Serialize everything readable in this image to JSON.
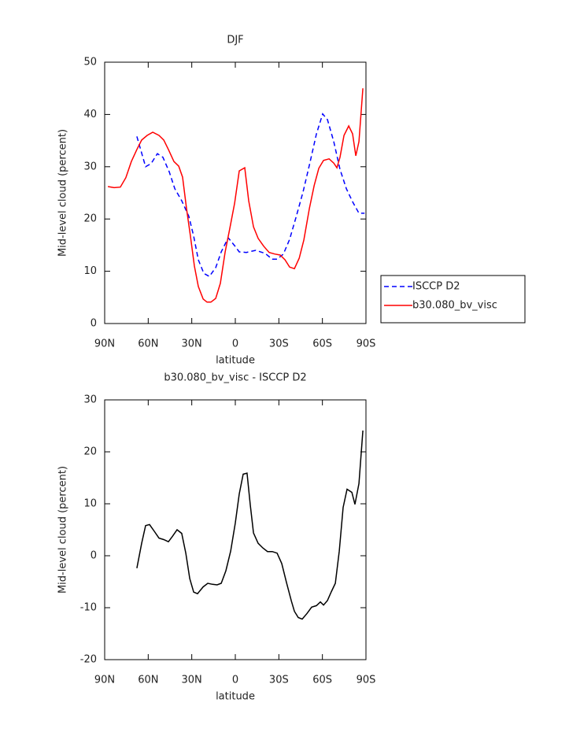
{
  "chart_data": [
    {
      "type": "line",
      "title": "DJF",
      "xlabel": "latitude",
      "ylabel": "Mid-level cloud (percent)",
      "xlim": [
        90,
        -90
      ],
      "xticks": [
        {
          "value": 90,
          "label": "90N"
        },
        {
          "value": 60,
          "label": "60N"
        },
        {
          "value": 30,
          "label": "30N"
        },
        0,
        {
          "value": -30,
          "label": "30S"
        },
        {
          "value": -60,
          "label": "60S"
        },
        {
          "value": -90,
          "label": "90S"
        }
      ],
      "ylim": [
        0,
        50
      ],
      "yticks": [
        0,
        10,
        20,
        30,
        40,
        50
      ],
      "legend": "right",
      "series": [
        {
          "name": "ISCCP D2",
          "color": "#0000ff",
          "linestyle": "dashed",
          "x": [
            67.8,
            61.8,
            58,
            53.7,
            49.9,
            45.5,
            41.7,
            36.9,
            32,
            28.7,
            25.5,
            21.7,
            17.9,
            13.5,
            9.7,
            4.9,
            0.5,
            -2.7,
            -7.6,
            -14.1,
            -20.6,
            -25.5,
            -28.8,
            -33.1,
            -37.4,
            -41.8,
            -46.7,
            -51,
            -55.9,
            -60.2,
            -63.5,
            -67.8,
            -72.1,
            -76.5,
            -80.8,
            -85.2,
            -89
          ],
          "values": [
            35.8,
            30,
            30.6,
            32.5,
            31.8,
            29,
            25.8,
            23.5,
            20.5,
            16.7,
            12.2,
            9.6,
            9.0,
            10.7,
            13.7,
            16.4,
            14.9,
            13.7,
            13.6,
            14,
            13.4,
            12.3,
            12.3,
            13.3,
            16.1,
            20.3,
            25.2,
            30.3,
            36.3,
            40.1,
            39,
            34.8,
            29.5,
            25.8,
            23.3,
            21.1,
            21.1
          ]
        },
        {
          "name": "b30.080_bv_visc",
          "color": "#ff0000",
          "linestyle": "solid",
          "x": [
            87.8,
            83.5,
            79.2,
            75.4,
            71.6,
            67.8,
            64.5,
            60.7,
            56.9,
            52.6,
            49.3,
            46.1,
            42.3,
            39,
            36.3,
            33.6,
            30.9,
            28.2,
            25.5,
            22.2,
            19.5,
            16.8,
            13.5,
            10.3,
            7,
            3.8,
            0.5,
            -2.7,
            -6.5,
            -9.2,
            -12.5,
            -15.7,
            -19.5,
            -23.3,
            -27.1,
            -30.9,
            -34.2,
            -37.4,
            -40.7,
            -44,
            -47.2,
            -51,
            -54.3,
            -57.5,
            -60.8,
            -64.6,
            -67.8,
            -70,
            -72.1,
            -74.9,
            -78.1,
            -80.8,
            -83,
            -85.2,
            -87.9
          ],
          "values": [
            26.2,
            26,
            26.1,
            27.9,
            31,
            33.3,
            35.1,
            36,
            36.6,
            36,
            35.1,
            33.3,
            31,
            30.1,
            28,
            22,
            16.7,
            11,
            7.1,
            4.7,
            4.1,
            4.1,
            4.8,
            7.7,
            13.7,
            18.2,
            23,
            29.2,
            29.8,
            23.5,
            18.5,
            16.3,
            14.8,
            13.6,
            13.3,
            13.1,
            12.2,
            10.8,
            10.5,
            12.5,
            16,
            22,
            26.4,
            29.7,
            31.2,
            31.5,
            30.7,
            29.8,
            31.8,
            36,
            37.8,
            36.3,
            32.1,
            34.8,
            45
          ]
        }
      ]
    },
    {
      "type": "line",
      "title": "b30.080_bv_visc - ISCCP D2",
      "xlabel": "latitude",
      "ylabel": "Mid-level cloud (percent)",
      "xlim": [
        90,
        -90
      ],
      "xticks": [
        {
          "value": 90,
          "label": "90N"
        },
        {
          "value": 60,
          "label": "60N"
        },
        {
          "value": 30,
          "label": "30N"
        },
        0,
        {
          "value": -30,
          "label": "30S"
        },
        {
          "value": -60,
          "label": "60S"
        },
        {
          "value": -90,
          "label": "90S"
        }
      ],
      "ylim": [
        -20,
        30
      ],
      "yticks": [
        -20,
        -10,
        0,
        10,
        20,
        30
      ],
      "color": "#000000",
      "x": [
        67.8,
        64.5,
        61.8,
        59.1,
        55.8,
        52.6,
        49.3,
        46.1,
        43.4,
        40.1,
        36.9,
        34.1,
        31.4,
        28.7,
        26,
        22.2,
        19,
        15.7,
        12.5,
        9.7,
        6.5,
        3.2,
        0,
        -2.7,
        -5.4,
        -8.1,
        -10.3,
        -12.5,
        -15.7,
        -19,
        -22.2,
        -25.5,
        -28.8,
        -32,
        -35.3,
        -38.6,
        -40.7,
        -43.4,
        -46.1,
        -49.4,
        -52.6,
        -55.9,
        -58.6,
        -60.8,
        -63.5,
        -66.2,
        -68.9,
        -71.6,
        -74.3,
        -77,
        -80.3,
        -82.4,
        -85.2,
        -87.9
      ],
      "values": [
        -2.4,
        2.4,
        5.8,
        6,
        4.7,
        3.4,
        3.1,
        2.7,
        3.7,
        5,
        4.3,
        0.5,
        -4.4,
        -7,
        -7.3,
        -6,
        -5.3,
        -5.5,
        -5.6,
        -5.3,
        -2.9,
        0.9,
        6.3,
        11.9,
        15.7,
        15.9,
        9.8,
        4.4,
        2.4,
        1.5,
        0.8,
        0.8,
        0.5,
        -1.5,
        -5.2,
        -8.7,
        -10.7,
        -11.9,
        -12.2,
        -11.1,
        -9.9,
        -9.6,
        -8.9,
        -9.5,
        -8.6,
        -6.9,
        -5.3,
        0.9,
        9.3,
        12.8,
        12.2,
        9.9,
        13.9,
        24.1
      ]
    }
  ]
}
